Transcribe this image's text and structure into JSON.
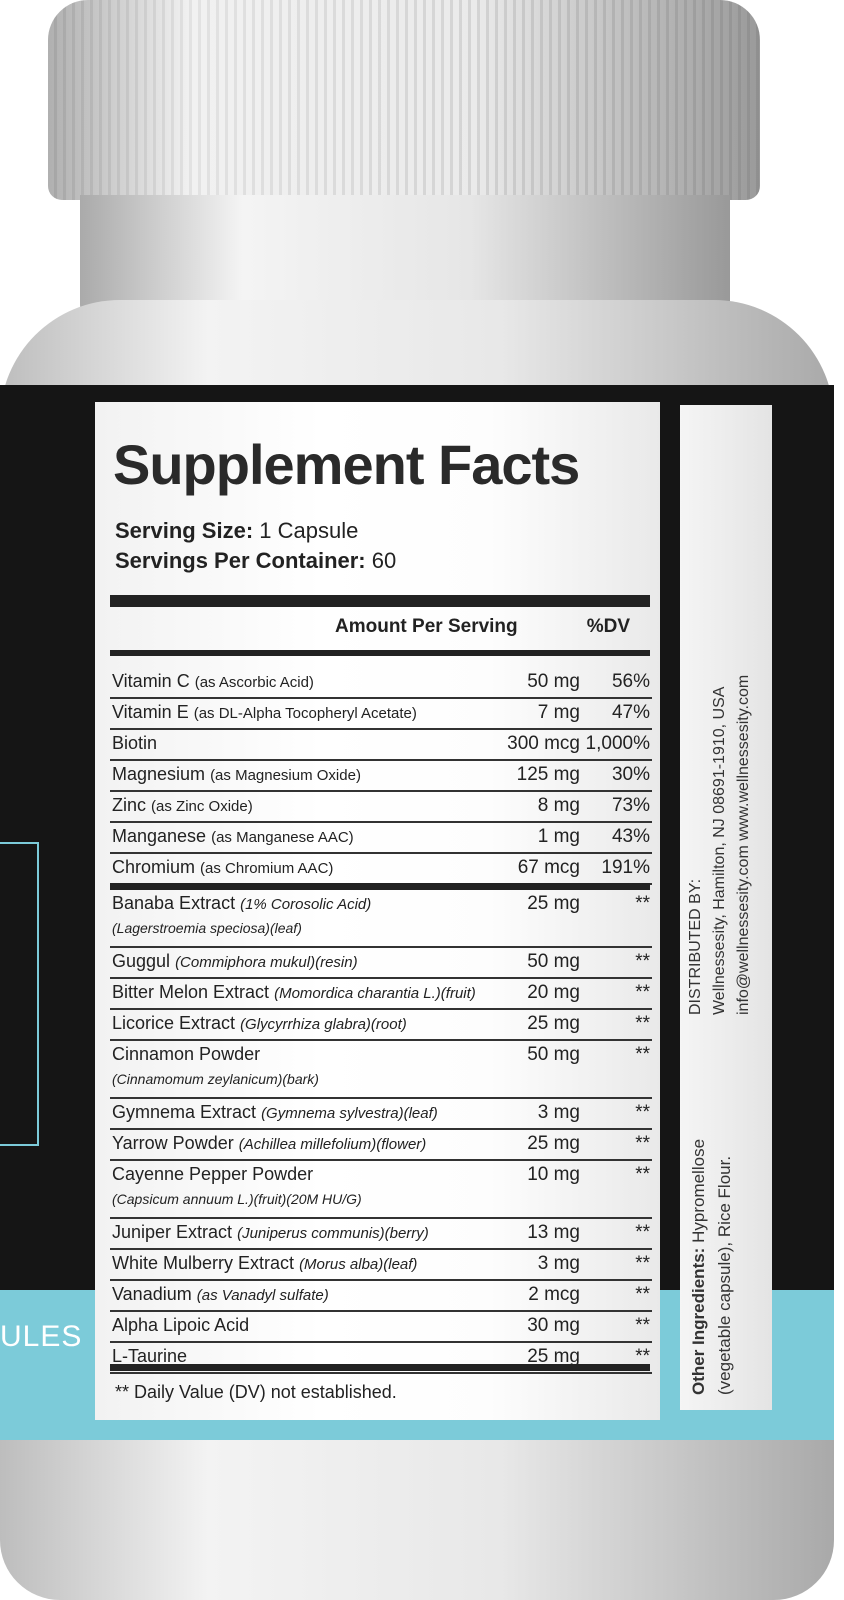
{
  "front_partial_text": "ULES",
  "facts": {
    "title": "Supplement Facts",
    "serving_size_label": "Serving Size:",
    "serving_size": "1 Capsule",
    "servings_label": "Servings Per Container:",
    "servings": "60",
    "amount_header": "Amount Per Serving",
    "dv_header": "%DV",
    "vitamins": [
      {
        "name": "Vitamin C",
        "detail": "(as Ascorbic Acid)",
        "amount": "50 mg",
        "dv": "56%"
      },
      {
        "name": "Vitamin E",
        "detail": "(as DL-Alpha Tocopheryl Acetate)",
        "amount": "7 mg",
        "dv": "47%"
      },
      {
        "name": "Biotin",
        "detail": "",
        "amount": "300 mcg",
        "dv": "1,000%"
      },
      {
        "name": "Magnesium",
        "detail": "(as Magnesium Oxide)",
        "amount": "125 mg",
        "dv": "30%"
      },
      {
        "name": "Zinc",
        "detail": "(as Zinc Oxide)",
        "amount": "8 mg",
        "dv": "73%"
      },
      {
        "name": "Manganese",
        "detail": "(as Manganese AAC)",
        "amount": "1 mg",
        "dv": "43%"
      },
      {
        "name": "Chromium",
        "detail": "(as Chromium AAC)",
        "amount": "67 mcg",
        "dv": "191%"
      }
    ],
    "herbs": [
      {
        "name": "Banaba Extract",
        "detail": "(1% Corosolic Acid)",
        "sub": "(Lagerstroemia speciosa)(leaf)",
        "amount": "25 mg",
        "dv": "**"
      },
      {
        "name": "Guggul",
        "detail": "(Commiphora mukul)(resin)",
        "sub": "",
        "amount": "50 mg",
        "dv": "**"
      },
      {
        "name": "Bitter Melon Extract",
        "detail": "(Momordica charantia L.)(fruit)",
        "sub": "",
        "amount": "20 mg",
        "dv": "**"
      },
      {
        "name": "Licorice Extract",
        "detail": "(Glycyrrhiza glabra)(root)",
        "sub": "",
        "amount": "25 mg",
        "dv": "**"
      },
      {
        "name": "Cinnamon Powder",
        "detail": "",
        "sub": "(Cinnamomum zeylanicum)(bark)",
        "amount": "50 mg",
        "dv": "**"
      },
      {
        "name": "Gymnema Extract",
        "detail": "(Gymnema sylvestra)(leaf)",
        "sub": "",
        "amount": "3 mg",
        "dv": "**"
      },
      {
        "name": "Yarrow Powder",
        "detail": "(Achillea millefolium)(flower)",
        "sub": "",
        "amount": "25 mg",
        "dv": "**"
      },
      {
        "name": "Cayenne Pepper Powder",
        "detail": "",
        "sub": "(Capsicum annuum L.)(fruit)(20M HU/G)",
        "amount": "10 mg",
        "dv": "**"
      },
      {
        "name": "Juniper Extract",
        "detail": "(Juniperus communis)(berry)",
        "sub": "",
        "amount": "13 mg",
        "dv": "**"
      },
      {
        "name": "White Mulberry Extract",
        "detail": "(Morus alba)(leaf)",
        "sub": "",
        "amount": "3 mg",
        "dv": "**"
      },
      {
        "name": "Vanadium",
        "detail": "(as Vanadyl sulfate)",
        "sub": "",
        "amount": "2 mcg",
        "dv": "**"
      },
      {
        "name": "Alpha Lipoic Acid",
        "detail": "",
        "sub": "",
        "amount": "30 mg",
        "dv": "**"
      },
      {
        "name": "L-Taurine",
        "detail": "",
        "sub": "",
        "amount": "25 mg",
        "dv": "**"
      }
    ],
    "footnote": "** Daily Value (DV) not established."
  },
  "side": {
    "other_label": "Other Ingredients:",
    "other_line1": "Hypromellose",
    "other_line2": "(vegetable capsule),  Rice Flour.",
    "dist_title": "DISTRIBUTED BY:",
    "dist_line1": "Wellnessesity, Hamilton, NJ 08691-1910, USA",
    "dist_line2": "info@wellnessesity.com www.wellnessesity.com"
  },
  "colors": {
    "accent_blue": "#7ccbd9",
    "band": "#151515"
  }
}
